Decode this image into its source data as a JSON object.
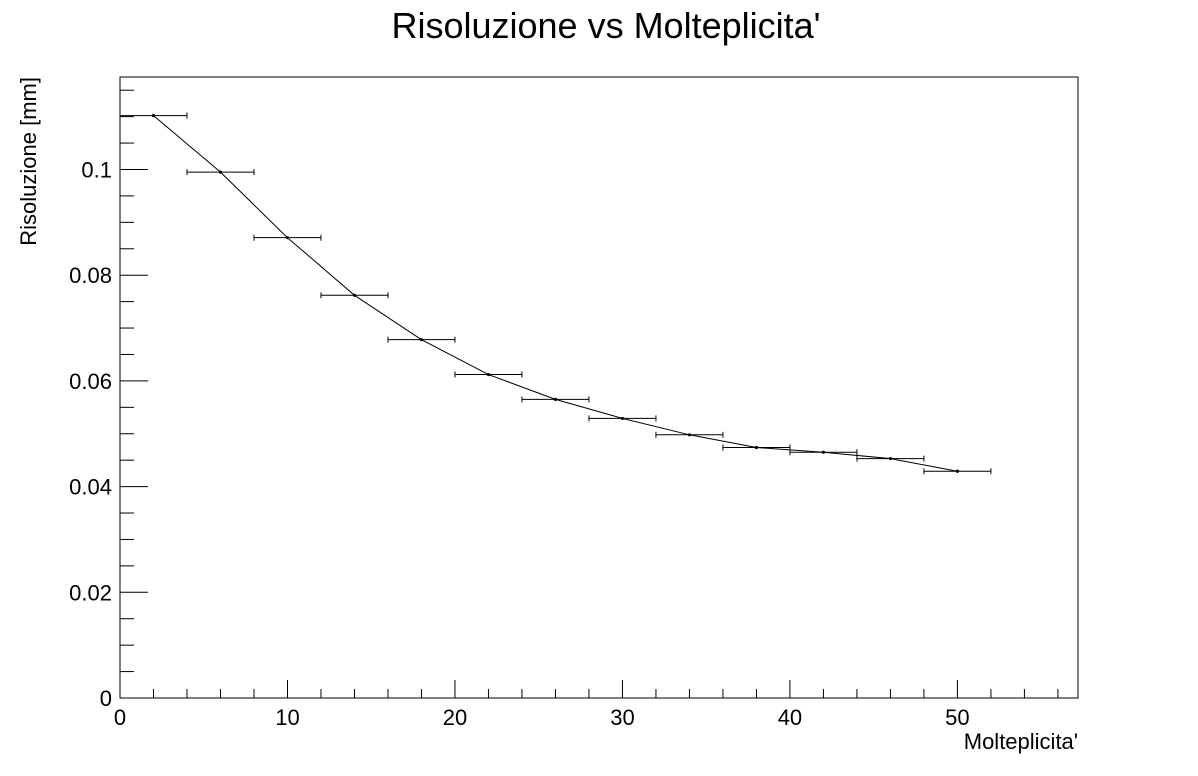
{
  "chart_data": {
    "type": "scatter",
    "title": "Risoluzione vs Molteplicita'",
    "xlabel": "Molteplicita'",
    "ylabel": "Risoluzione [mm]",
    "xlim": [
      0,
      57.2
    ],
    "ylim": [
      0,
      0.1175
    ],
    "x_ticks": [
      0,
      10,
      20,
      30,
      40,
      50
    ],
    "x_tick_labels": [
      "0",
      "10",
      "20",
      "30",
      "40",
      "50"
    ],
    "y_ticks": [
      0,
      0.02,
      0.04,
      0.06,
      0.08,
      0.1
    ],
    "y_tick_labels": [
      "0",
      "0.02",
      "0.04",
      "0.06",
      "0.08",
      "0.1"
    ],
    "grid": false,
    "series": [
      {
        "x": [
          2,
          6,
          10,
          14,
          18,
          22,
          26,
          30,
          34,
          38,
          42,
          46,
          50
        ],
        "y": [
          0.1102,
          0.0995,
          0.0871,
          0.0762,
          0.0678,
          0.0612,
          0.0565,
          0.0529,
          0.0498,
          0.0474,
          0.0465,
          0.0453,
          0.0429
        ],
        "x_err": [
          2,
          2,
          2,
          2,
          2,
          2,
          2,
          2,
          2,
          2,
          2,
          2,
          2
        ],
        "color": "#000000",
        "line": true
      }
    ]
  }
}
